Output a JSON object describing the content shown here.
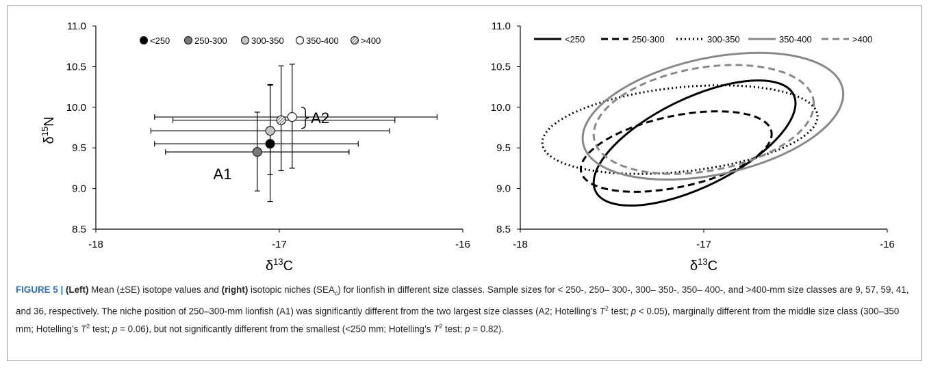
{
  "chart_data": [
    {
      "type": "scatter",
      "panel": "left",
      "xlabel": "δ13C",
      "ylabel": "δ15N",
      "xlim": [
        -18,
        -16
      ],
      "ylim": [
        8.5,
        11.0
      ],
      "xticks": [
        -18,
        -17,
        -16
      ],
      "xtick_labels": [
        "-18",
        "-17",
        "-16"
      ],
      "yticks": [
        8.5,
        9.0,
        9.5,
        10.0,
        10.5,
        11.0
      ],
      "ytick_labels": [
        "8.5",
        "9.0",
        "9.5",
        "10.0",
        "10.5",
        "11.0"
      ],
      "legend_position": "top",
      "grid": false,
      "series": [
        {
          "name": "<250",
          "marker": "black",
          "x": -17.05,
          "y": 9.55,
          "xerr_low": -17.68,
          "xerr_high": -16.57,
          "yerr_low": 8.84,
          "yerr_high": 10.27
        },
        {
          "name": "250-300",
          "marker": "darkgray",
          "x": -17.12,
          "y": 9.45,
          "xerr_low": -17.62,
          "xerr_high": -16.62,
          "yerr_low": 8.97,
          "yerr_high": 9.94
        },
        {
          "name": "300-350",
          "marker": "lightgray",
          "x": -17.05,
          "y": 9.71,
          "xerr_low": -17.7,
          "xerr_high": -16.4,
          "yerr_low": 9.17,
          "yerr_high": 10.28
        },
        {
          "name": "350-400",
          "marker": "white",
          "x": -16.93,
          "y": 9.88,
          "xerr_low": -17.68,
          "xerr_high": -16.14,
          "yerr_low": 9.25,
          "yerr_high": 10.53
        },
        {
          "name": ">400",
          "marker": "hatched",
          "x": -16.99,
          "y": 9.84,
          "xerr_low": -17.58,
          "xerr_high": -16.37,
          "yerr_low": 9.22,
          "yerr_high": 10.51
        }
      ],
      "annotations": [
        {
          "text": "A1",
          "x": -17.36,
          "y": 9.18
        },
        {
          "text": "A2",
          "x": -16.72,
          "y": 9.88
        }
      ]
    },
    {
      "type": "ellipse",
      "panel": "right",
      "xlabel": "δ13C",
      "xlim": [
        -18,
        -16
      ],
      "ylim": [
        8.5,
        11.0
      ],
      "xticks": [
        -18,
        -17,
        -16
      ],
      "xtick_labels": [
        "-18",
        "-17",
        "-16"
      ],
      "yticks": [
        8.5,
        9.0,
        9.5,
        10.0,
        10.5,
        11.0
      ],
      "ytick_labels": [
        "8.5",
        "9.0",
        "9.5",
        "10.0",
        "10.5",
        "11.0"
      ],
      "legend_position": "top",
      "grid": false,
      "series": [
        {
          "name": "<250",
          "color": "#000000",
          "dash": "solid",
          "x_range": [
            -17.6,
            -16.5
          ],
          "y_range": [
            8.79,
            10.33
          ]
        },
        {
          "name": "250-300",
          "color": "#000000",
          "dash": "dashed",
          "x_range": [
            -17.67,
            -16.63
          ],
          "y_range": [
            8.96,
            9.95
          ]
        },
        {
          "name": "300-350",
          "color": "#000000",
          "dash": "dotted",
          "x_range": [
            -17.88,
            -16.38
          ],
          "y_range": [
            9.18,
            10.27
          ]
        },
        {
          "name": "350-400",
          "color": "#888888",
          "dash": "solid",
          "x_range": [
            -17.66,
            -16.24
          ],
          "y_range": [
            9.11,
            10.67
          ]
        },
        {
          "name": ">400",
          "color": "#888888",
          "dash": "dashed",
          "x_range": [
            -17.6,
            -16.4
          ],
          "y_range": [
            9.18,
            10.52
          ]
        }
      ]
    }
  ],
  "caption": {
    "label": "FIGURE 5 | ",
    "t1": "(Left)",
    "t2": " Mean (±SE) isotope values and ",
    "t3": "(right)",
    "t4": " isotopic niches (SEA",
    "t5": "c",
    "t6": ") for lionfish in different size classes. Sample sizes for < 250-, 250– 300-, 300– 350-, 350– 400-, and >400-mm size classes are 9, 57, 59, 41, and 36, respectively. The niche position of 250–300-mm lionfish (A1) was significantly different from the two largest size classes (A2; Hotelling’s ",
    "t7": "T",
    "t8": "2",
    "t9": " test; ",
    "t10": "p",
    "t11": " < 0.05), marginally different from the middle size class (300–350 mm; Hotelling’s ",
    "t12": "T",
    "t13": "2",
    "t14": " test; ",
    "t15": "p",
    "t16": " = 0.06), but not significantly different from the smallest (<250 mm; Hotelling’s ",
    "t17": "T",
    "t18": "2",
    "t19": " test; ",
    "t20": "p",
    "t21": " = 0.82)."
  }
}
